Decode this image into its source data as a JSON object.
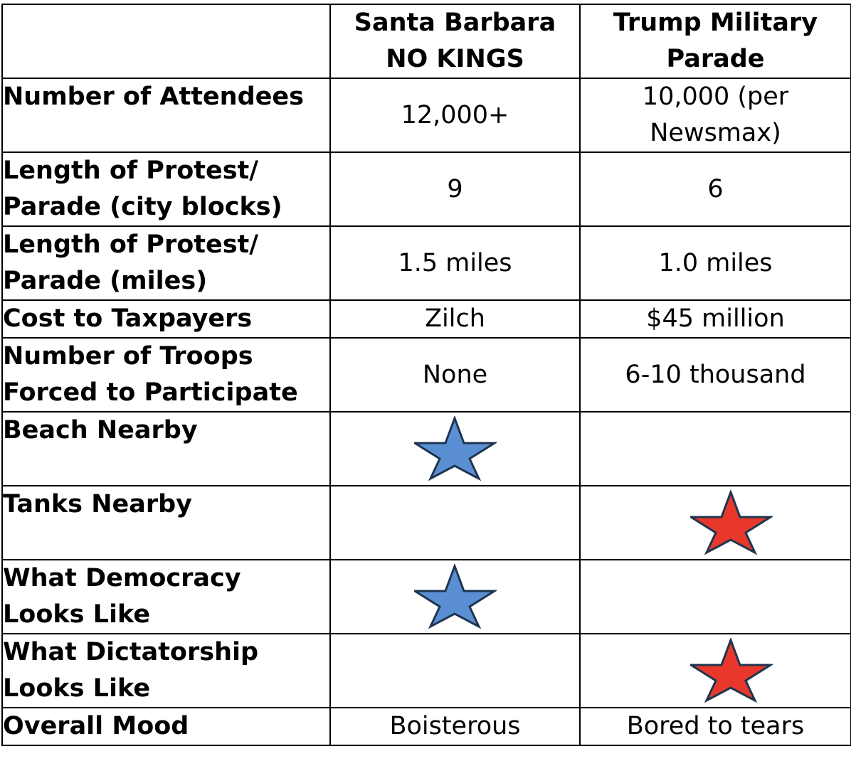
{
  "header": {
    "col0": "",
    "col1": "Santa Barbara NO KINGS",
    "col2": "Trump Military Parade"
  },
  "rows": [
    {
      "label": "Number of Attendees",
      "sb": "12,000+",
      "trump": "10,000 (per Newsmax)"
    },
    {
      "label": "Length of Protest/ Parade (city blocks)",
      "sb": "9",
      "trump": "6"
    },
    {
      "label": "Length of Protest/ Parade (miles)",
      "sb": "1.5 miles",
      "trump": "1.0 miles"
    },
    {
      "label": "Cost to Taxpayers",
      "sb": "Zilch",
      "trump": "$45 million"
    },
    {
      "label": "Number of Troops Forced to Participate",
      "sb": "None",
      "trump": "6-10 thousand"
    },
    {
      "label": "Beach Nearby",
      "sb_star": true,
      "trump_star": false
    },
    {
      "label": "Tanks Nearby",
      "sb_star": false,
      "trump_star": true
    },
    {
      "label": "What Democracy Looks Like",
      "sb_star": true,
      "trump_star": false
    },
    {
      "label": "What Dictatorship Looks Like",
      "sb_star": false,
      "trump_star": true
    },
    {
      "label": "Overall Mood",
      "sb": "Boisterous",
      "trump": "Bored to tears"
    }
  ],
  "icons": {
    "sb_star": "blue-star-icon",
    "trump_star": "red-star-icon"
  },
  "colors": {
    "blue_star": "#5b8fd3",
    "red_star": "#e8382b",
    "star_outline": "#1f3550"
  }
}
